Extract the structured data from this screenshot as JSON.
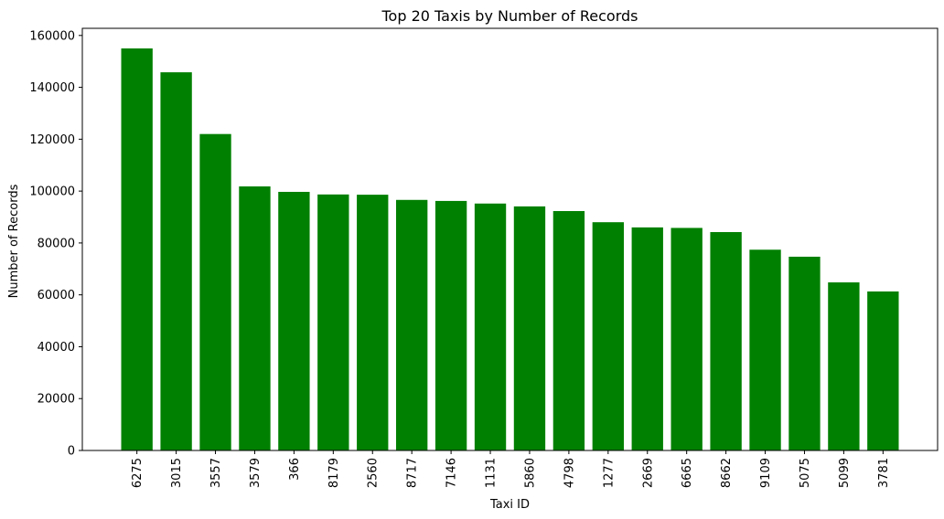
{
  "chart_data": {
    "type": "bar",
    "title": "Top 20 Taxis by Number of Records",
    "xlabel": "Taxi ID",
    "ylabel": "Number of Records",
    "categories": [
      "6275",
      "3015",
      "3557",
      "3579",
      "366",
      "8179",
      "2560",
      "8717",
      "7146",
      "1131",
      "5860",
      "4798",
      "1277",
      "2669",
      "6665",
      "8662",
      "9109",
      "5075",
      "5099",
      "3781"
    ],
    "values": [
      155000,
      145800,
      122000,
      101800,
      99700,
      98700,
      98600,
      96600,
      96200,
      95200,
      94100,
      92300,
      88000,
      86000,
      85800,
      84200,
      77400,
      74700,
      64800,
      61300
    ],
    "ylim": [
      0,
      162750
    ],
    "yticks": [
      0,
      20000,
      40000,
      60000,
      80000,
      100000,
      120000,
      140000,
      160000
    ],
    "bar_color": "#008000",
    "grid": false,
    "legend": "none"
  }
}
